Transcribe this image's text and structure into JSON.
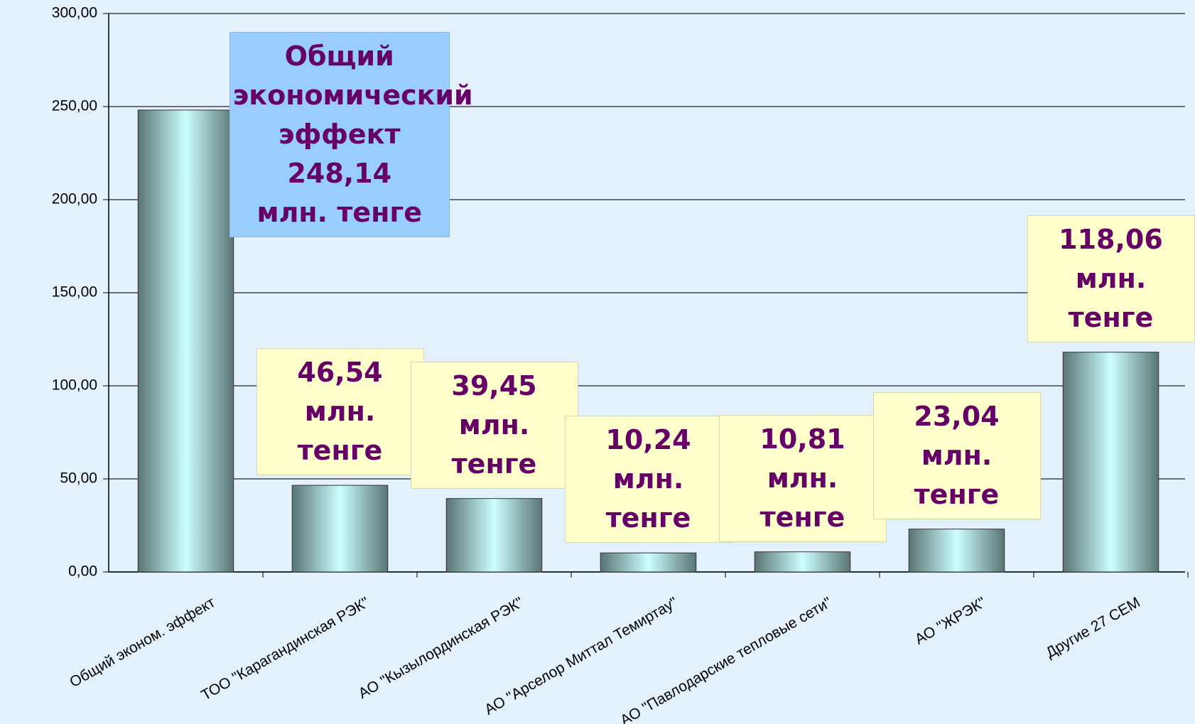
{
  "chart_data": {
    "type": "bar",
    "categories": [
      "Общий эконом. эффект",
      "ТОО \"Карагандинская РЭК\"",
      "АО \"Кызылординская РЭК\"",
      "АО \"Арселор Миттал Темиртау\"",
      "АО \"Павлодарские тепловые сети\"",
      "АО \"ЖРЭК\"",
      "Другие 27 СЕМ"
    ],
    "values": [
      248.14,
      46.54,
      39.45,
      10.24,
      10.81,
      23.04,
      118.06
    ],
    "value_labels": [
      "Общий\nэкономический\nэффект\n248,14\nмлн. тенге",
      "46,54\nмлн. тенге",
      "39,45\nмлн. тенге",
      "10,24\nмлн. тенге",
      "10,81\nмлн. тенге",
      "23,04\nмлн. тенге",
      "118,06\nмлн. тенге"
    ],
    "ylim": [
      0,
      300
    ],
    "yticks": [
      {
        "value": 0,
        "label": "0,00"
      },
      {
        "value": 50,
        "label": "50,00"
      },
      {
        "value": 100,
        "label": "100,00"
      },
      {
        "value": 150,
        "label": "150,00"
      },
      {
        "value": 200,
        "label": "200,00"
      },
      {
        "value": 250,
        "label": "250,00"
      },
      {
        "value": 300,
        "label": "300,00"
      }
    ],
    "grid": true
  }
}
